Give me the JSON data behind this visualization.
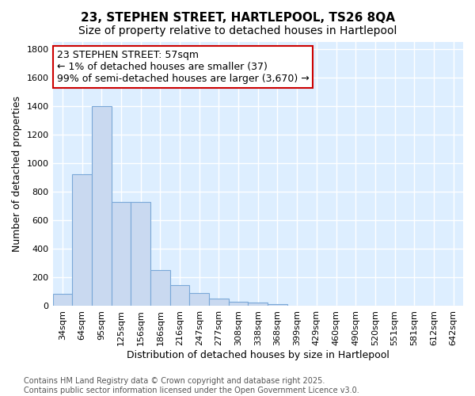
{
  "title": "23, STEPHEN STREET, HARTLEPOOL, TS26 8QA",
  "subtitle": "Size of property relative to detached houses in Hartlepool",
  "xlabel": "Distribution of detached houses by size in Hartlepool",
  "ylabel": "Number of detached properties",
  "categories": [
    "34sqm",
    "64sqm",
    "95sqm",
    "125sqm",
    "156sqm",
    "186sqm",
    "216sqm",
    "247sqm",
    "277sqm",
    "308sqm",
    "338sqm",
    "368sqm",
    "399sqm",
    "429sqm",
    "460sqm",
    "490sqm",
    "520sqm",
    "551sqm",
    "581sqm",
    "612sqm",
    "642sqm"
  ],
  "values": [
    85,
    920,
    1400,
    730,
    730,
    250,
    145,
    90,
    50,
    30,
    25,
    15,
    0,
    0,
    0,
    0,
    0,
    0,
    0,
    0,
    0
  ],
  "bar_color": "#c9d9f0",
  "bar_edge_color": "#7aa8d8",
  "bg_color": "#ddeeff",
  "grid_color": "#ffffff",
  "annotation_line1": "23 STEPHEN STREET: 57sqm",
  "annotation_line2": "← 1% of detached houses are smaller (37)",
  "annotation_line3": "99% of semi-detached houses are larger (3,670) →",
  "annotation_box_facecolor": "#ffffff",
  "annotation_box_edgecolor": "#cc0000",
  "ylim": [
    0,
    1850
  ],
  "yticks": [
    0,
    200,
    400,
    600,
    800,
    1000,
    1200,
    1400,
    1600,
    1800
  ],
  "footer_line1": "Contains HM Land Registry data © Crown copyright and database right 2025.",
  "footer_line2": "Contains public sector information licensed under the Open Government Licence v3.0.",
  "title_fontsize": 11,
  "subtitle_fontsize": 10,
  "ylabel_fontsize": 9,
  "xlabel_fontsize": 9,
  "tick_fontsize": 8,
  "annotation_fontsize": 9,
  "footer_fontsize": 7,
  "fig_bg": "#ffffff"
}
